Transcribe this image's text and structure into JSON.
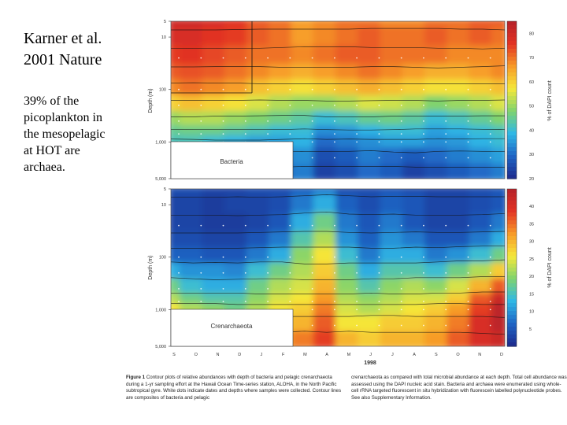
{
  "slide": {
    "title_lines": [
      "Karner et al.",
      "2001 Nature"
    ],
    "body_lines": [
      "39% of the",
      "picoplankton in",
      "the mesopelagic",
      "at HOT are",
      "archaea."
    ]
  },
  "figure": {
    "xtick_labels": [
      "S",
      "O",
      "N",
      "D",
      "J",
      "F",
      "M",
      "A",
      "M",
      "J",
      "J",
      "A",
      "S",
      "O",
      "N",
      "D"
    ],
    "xlabel": "1998",
    "caption": {
      "label": "Figure 1",
      "left": "Contour plots of relative abundances with depth of bacteria and pelagic crenarchaeota during a 1-yr sampling effort at the Hawaii Ocean Time-series station, ALOHA, in the North Pacific subtropical gyre. White dots indicate dates and depths where samples were collected. Contour lines are composites of bacteria and pelagic",
      "right": "crenarchaeota as compared with total microbial abundance at each depth. Total cell abundance was assessed using the DAPI nucleic acid stain. Bacteria and archaea were enumerated using whole-cell rRNA targeted fluorescent in situ hybridization with fluorescein labelled polynucleotide probes. See also Supplementary Information."
    }
  },
  "chart_data": [
    {
      "type": "heatmap",
      "panel_label": "Bacteria",
      "ylabel": "Depth (m)",
      "yscale": "log",
      "y_ticks": [
        "5",
        "10",
        "100",
        "1,000",
        "5,000"
      ],
      "colorbar_label": "% of DAPI count",
      "colorbar_ticks": [
        20,
        30,
        40,
        50,
        60,
        70,
        80
      ],
      "color_range": [
        20,
        85
      ],
      "x": [
        "S",
        "O",
        "N",
        "D",
        "J",
        "F",
        "M",
        "A",
        "M",
        "J",
        "J",
        "A",
        "S",
        "O",
        "N",
        "D"
      ],
      "depths": [
        5,
        10,
        25,
        50,
        100,
        200,
        400,
        700,
        1000,
        2000,
        4000
      ],
      "values": [
        [
          80,
          80,
          78,
          76,
          72,
          70,
          66,
          68,
          70,
          70,
          68,
          68,
          70,
          70,
          72,
          72
        ],
        [
          78,
          78,
          76,
          75,
          72,
          70,
          66,
          68,
          70,
          72,
          70,
          70,
          72,
          70,
          72,
          70
        ],
        [
          75,
          76,
          74,
          72,
          70,
          70,
          68,
          70,
          72,
          72,
          70,
          70,
          70,
          68,
          68,
          68
        ],
        [
          72,
          73,
          72,
          70,
          68,
          66,
          64,
          66,
          68,
          70,
          68,
          66,
          64,
          64,
          66,
          68
        ],
        [
          68,
          70,
          68,
          66,
          62,
          60,
          58,
          60,
          62,
          64,
          62,
          60,
          58,
          58,
          60,
          62
        ],
        [
          60,
          62,
          60,
          58,
          55,
          52,
          50,
          50,
          52,
          55,
          54,
          52,
          48,
          50,
          52,
          55
        ],
        [
          50,
          52,
          52,
          50,
          48,
          46,
          44,
          40,
          42,
          45,
          46,
          44,
          40,
          42,
          45,
          48
        ],
        [
          45,
          46,
          46,
          44,
          42,
          40,
          40,
          34,
          35,
          38,
          40,
          40,
          36,
          38,
          40,
          42
        ],
        [
          42,
          42,
          40,
          38,
          36,
          36,
          38,
          30,
          32,
          34,
          36,
          36,
          34,
          35,
          38,
          40
        ],
        [
          38,
          36,
          34,
          32,
          28,
          30,
          34,
          26,
          28,
          32,
          30,
          28,
          30,
          32,
          34,
          36
        ],
        [
          35,
          34,
          30,
          28,
          24,
          26,
          32,
          24,
          26,
          30,
          28,
          24,
          26,
          28,
          30,
          32
        ]
      ]
    },
    {
      "type": "heatmap",
      "panel_label": "Crenarchaeota",
      "ylabel": "Depth (m)",
      "yscale": "log",
      "y_ticks": [
        "5",
        "10",
        "100",
        "1,000",
        "5,000"
      ],
      "colorbar_label": "% of DAPI count",
      "colorbar_ticks": [
        5,
        10,
        15,
        20,
        25,
        30,
        35,
        40
      ],
      "color_range": [
        0,
        45
      ],
      "x": [
        "S",
        "O",
        "N",
        "D",
        "J",
        "F",
        "M",
        "A",
        "M",
        "J",
        "J",
        "A",
        "S",
        "O",
        "N",
        "D"
      ],
      "depths": [
        5,
        10,
        25,
        50,
        100,
        200,
        400,
        700,
        1000,
        2000,
        4000
      ],
      "values": [
        [
          4,
          4,
          3,
          3,
          4,
          4,
          6,
          8,
          4,
          4,
          5,
          4,
          3,
          3,
          4,
          5
        ],
        [
          3,
          3,
          2,
          3,
          3,
          4,
          8,
          12,
          6,
          4,
          6,
          5,
          3,
          3,
          4,
          5
        ],
        [
          3,
          3,
          2,
          2,
          3,
          5,
          12,
          18,
          8,
          5,
          8,
          5,
          3,
          3,
          5,
          8
        ],
        [
          4,
          4,
          3,
          3,
          5,
          8,
          16,
          22,
          10,
          6,
          10,
          8,
          5,
          5,
          8,
          12
        ],
        [
          6,
          6,
          5,
          5,
          8,
          12,
          20,
          26,
          14,
          8,
          12,
          12,
          8,
          10,
          14,
          18
        ],
        [
          12,
          10,
          10,
          9,
          14,
          18,
          22,
          28,
          18,
          12,
          16,
          16,
          14,
          18,
          22,
          28
        ],
        [
          18,
          14,
          12,
          12,
          18,
          22,
          24,
          30,
          20,
          16,
          20,
          22,
          20,
          24,
          30,
          36
        ],
        [
          22,
          18,
          16,
          16,
          20,
          24,
          26,
          32,
          22,
          20,
          22,
          24,
          24,
          28,
          36,
          42
        ],
        [
          26,
          22,
          20,
          18,
          22,
          26,
          28,
          34,
          24,
          22,
          24,
          26,
          28,
          32,
          38,
          44
        ],
        [
          30,
          26,
          24,
          22,
          24,
          28,
          30,
          36,
          26,
          26,
          28,
          28,
          30,
          34,
          40,
          44
        ],
        [
          32,
          30,
          28,
          26,
          28,
          30,
          34,
          38,
          30,
          28,
          30,
          30,
          32,
          36,
          40,
          42
        ]
      ]
    }
  ],
  "colors": {
    "scale": [
      "#1e2a8c",
      "#1f64c4",
      "#2fb8e6",
      "#7fd36e",
      "#f5e83a",
      "#f79a28",
      "#e23324",
      "#b5222a"
    ],
    "contour": "#111111",
    "label_box": "#ffffff"
  }
}
